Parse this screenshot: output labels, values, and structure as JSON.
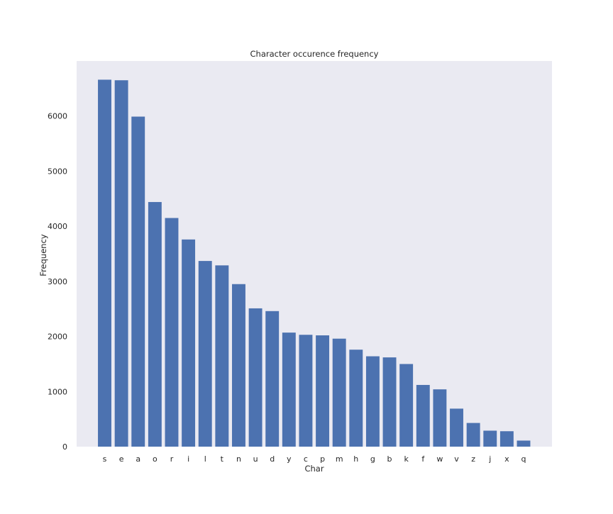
{
  "chart_data": {
    "type": "bar",
    "title": "Character occurence frequency",
    "xlabel": "Char",
    "ylabel": "Frequency",
    "grid": false,
    "ylim": [
      0,
      7000
    ],
    "yticks": [
      0,
      1000,
      2000,
      3000,
      4000,
      5000,
      6000
    ],
    "categories": [
      "s",
      "e",
      "a",
      "o",
      "r",
      "i",
      "l",
      "t",
      "n",
      "u",
      "d",
      "y",
      "c",
      "p",
      "m",
      "h",
      "g",
      "b",
      "k",
      "f",
      "w",
      "v",
      "z",
      "j",
      "x",
      "q"
    ],
    "values": [
      6660,
      6650,
      5990,
      4440,
      4150,
      3760,
      3370,
      3290,
      2950,
      2510,
      2460,
      2070,
      2030,
      2020,
      1960,
      1760,
      1640,
      1620,
      1500,
      1120,
      1040,
      690,
      430,
      290,
      280,
      110
    ],
    "colors": {
      "bar": "#4c72b0",
      "plot_background": "#eaeaf2"
    }
  }
}
